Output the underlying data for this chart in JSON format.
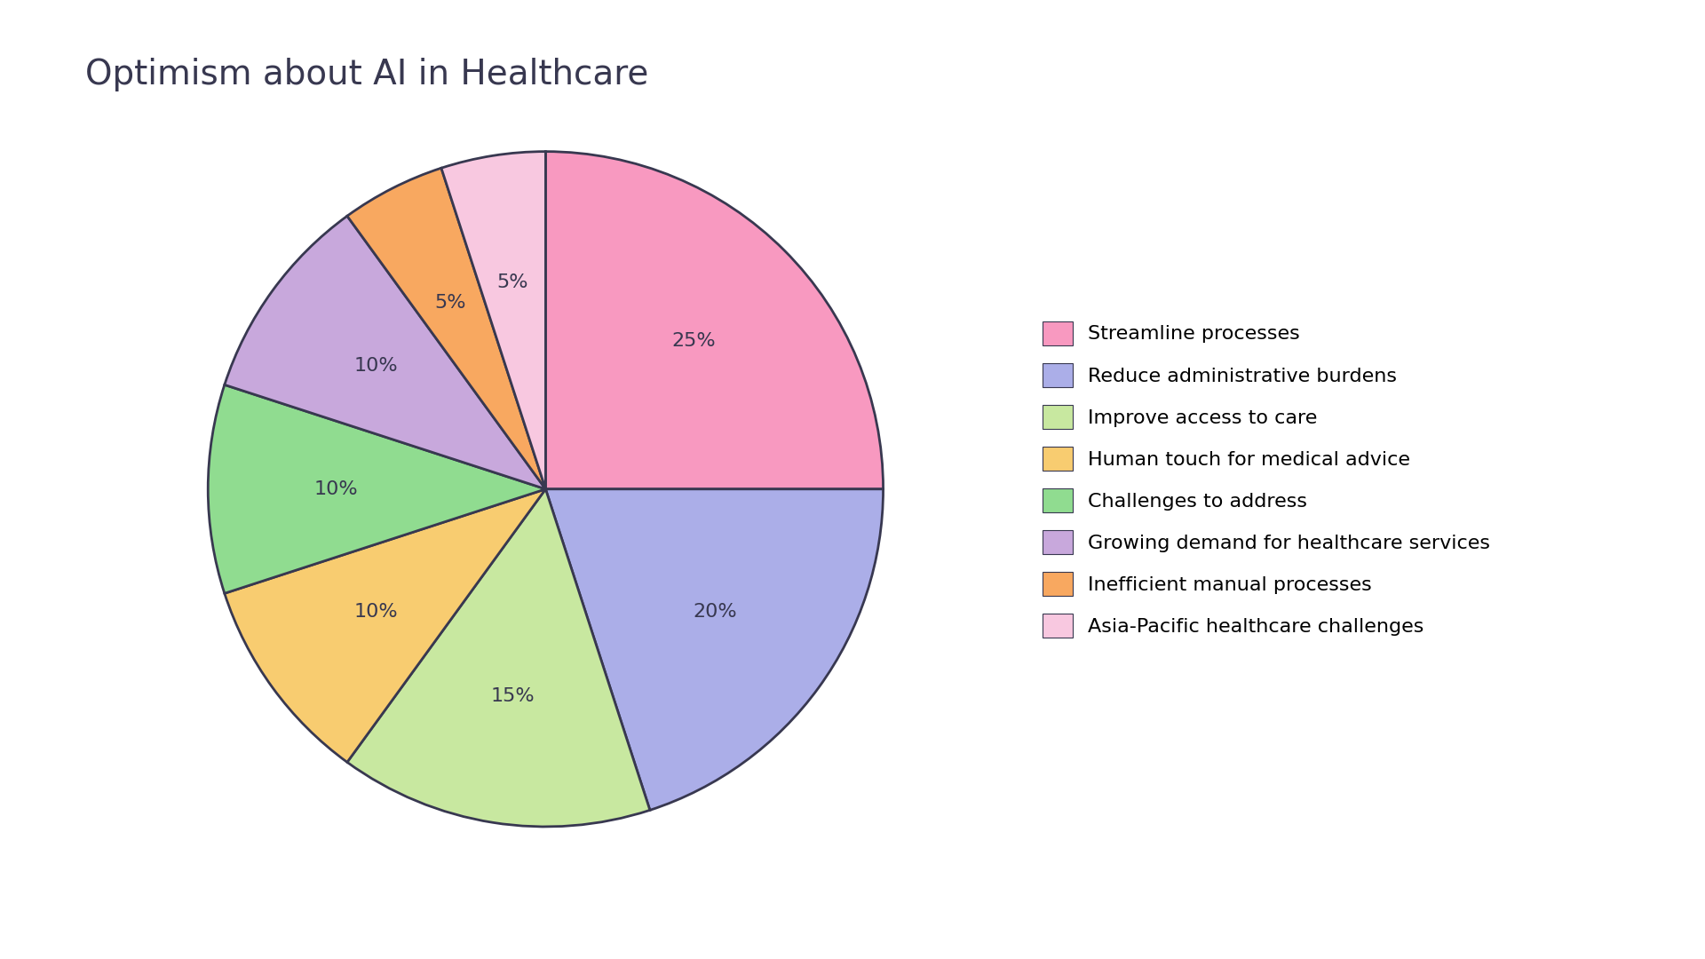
{
  "title": "Optimism about AI in Healthcare",
  "slices": [
    {
      "label": "Streamline processes",
      "value": 25,
      "color": "#F899C0"
    },
    {
      "label": "Reduce administrative burdens",
      "value": 20,
      "color": "#ABAEE8"
    },
    {
      "label": "Improve access to care",
      "value": 15,
      "color": "#C8E8A0"
    },
    {
      "label": "Human touch for medical advice",
      "value": 10,
      "color": "#F8CC70"
    },
    {
      "label": "Challenges to address",
      "value": 10,
      "color": "#90DC90"
    },
    {
      "label": "Growing demand for healthcare services",
      "value": 10,
      "color": "#C8A8DC"
    },
    {
      "label": "Inefficient manual processes",
      "value": 5,
      "color": "#F8A860"
    },
    {
      "label": "Asia-Pacific healthcare challenges",
      "value": 5,
      "color": "#F8C8E0"
    }
  ],
  "background_color": "#FFFFFF",
  "edge_color": "#383850",
  "edge_width": 2.0,
  "text_color": "#383850",
  "title_fontsize": 28,
  "label_fontsize": 16,
  "legend_fontsize": 16,
  "startangle": 90
}
